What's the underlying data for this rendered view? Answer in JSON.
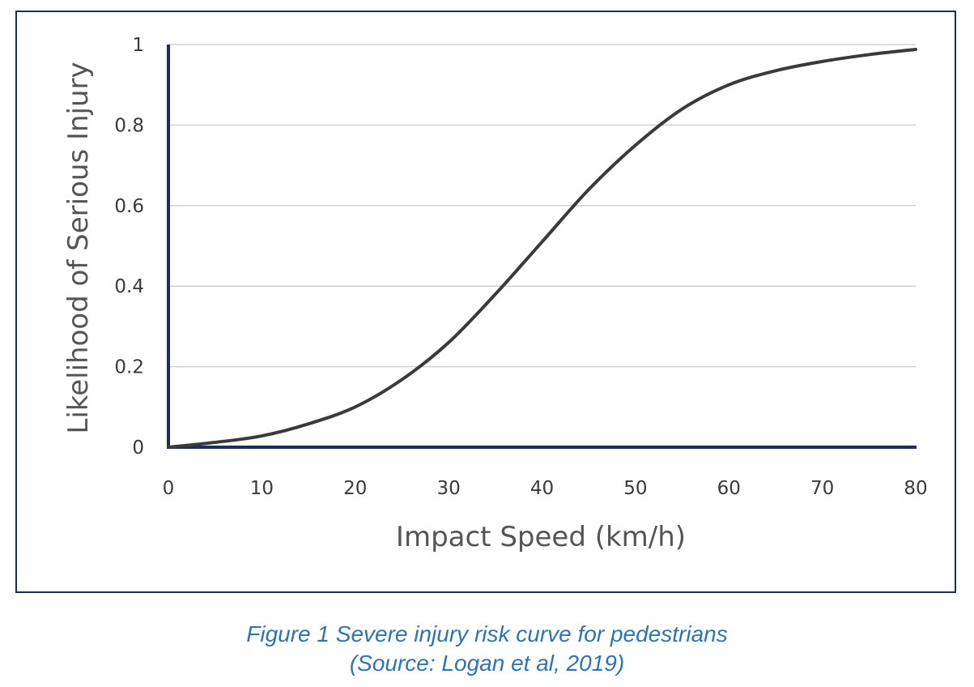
{
  "chart_data": {
    "type": "line",
    "title": "",
    "xlabel": "Impact Speed (km/h)",
    "ylabel": "Likelihood of Serious Injury",
    "xlim": [
      0,
      80
    ],
    "ylim": [
      0,
      1
    ],
    "x_ticks": [
      0,
      10,
      20,
      30,
      40,
      50,
      60,
      70,
      80
    ],
    "y_ticks": [
      0,
      0.2,
      0.4,
      0.6,
      0.8,
      1
    ],
    "y_tick_labels": [
      "0",
      "0.2",
      "0.4",
      "0.6",
      "0.8",
      "1"
    ],
    "grid": "horizontal",
    "legend": "none",
    "series": [
      {
        "color": "#3a3a3a",
        "x": [
          0,
          5,
          10,
          15,
          20,
          25,
          30,
          35,
          40,
          45,
          50,
          55,
          60,
          65,
          70,
          75,
          80
        ],
        "y": [
          0.0,
          0.012,
          0.028,
          0.058,
          0.1,
          0.168,
          0.26,
          0.38,
          0.51,
          0.64,
          0.75,
          0.84,
          0.9,
          0.935,
          0.958,
          0.975,
          0.988
        ]
      }
    ]
  },
  "caption": {
    "line1": "Figure 1 Severe injury risk curve for pedestrians",
    "line2": "(Source: Logan et al, 2019)"
  },
  "colors": {
    "axis": "#1f2d5a",
    "frame": "#1f2d5a",
    "gridline": "#d0d0d0",
    "curve": "#3a3a3a",
    "caption": "#2e74b5"
  }
}
